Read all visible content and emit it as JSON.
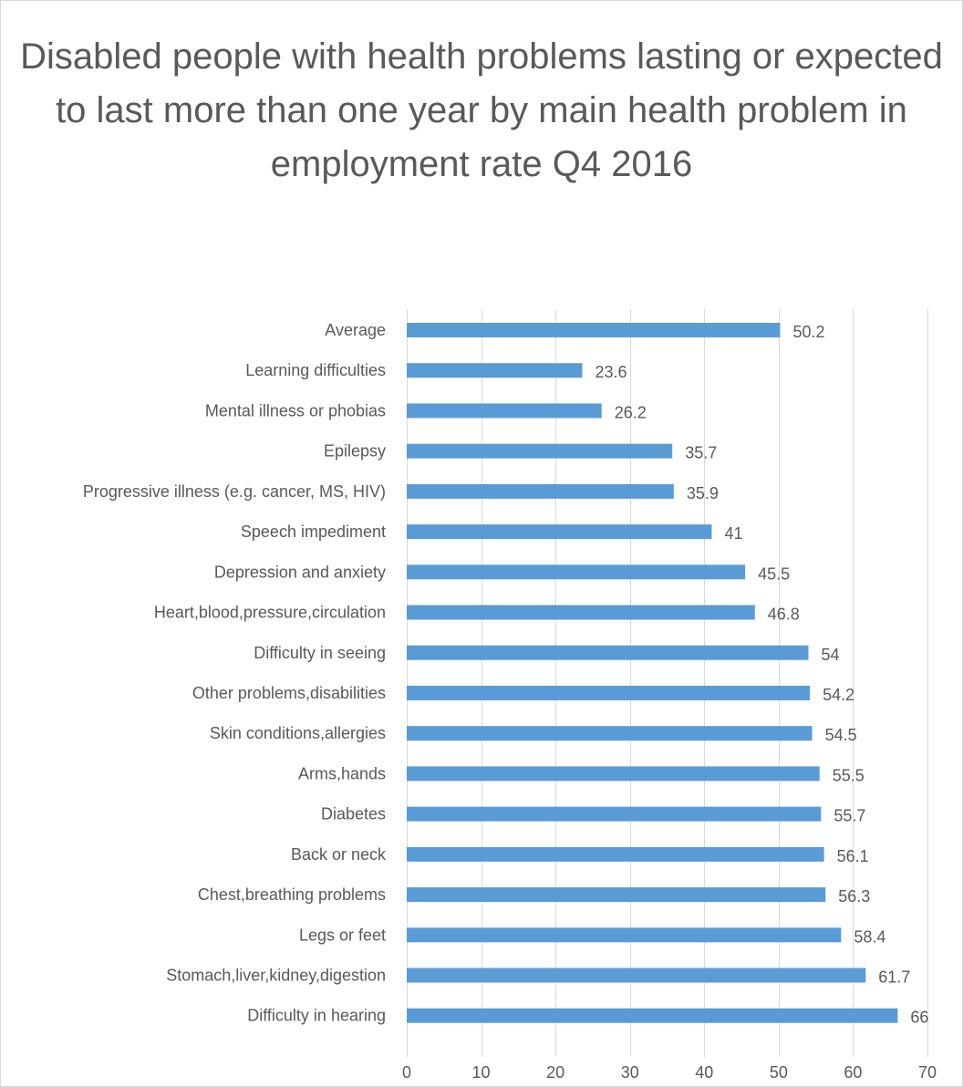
{
  "chart_data": {
    "type": "bar",
    "orientation": "horizontal",
    "title": "Disabled people with health problems lasting or expected to last more than one year by main health problem in employment rate Q4 2016",
    "xlabel": "",
    "ylabel": "",
    "xlim": [
      0,
      70
    ],
    "x_ticks": [
      0,
      10,
      20,
      30,
      40,
      50,
      60,
      70
    ],
    "gridlines": "vertical",
    "legend": "none",
    "bar_color": "#5b9bd5",
    "categories": [
      "Average",
      "Learning difficulties",
      "Mental illness or phobias",
      "Epilepsy",
      "Progressive illness (e.g. cancer, MS, HIV)",
      "Speech impediment",
      "Depression and anxiety",
      "Heart,blood,pressure,circulation",
      "Difficulty in seeing",
      "Other problems,disabilities",
      "Skin conditions,allergies",
      "Arms,hands",
      "Diabetes",
      "Back or neck",
      "Chest,breathing problems",
      "Legs or feet",
      "Stomach,liver,kidney,digestion",
      "Difficulty in hearing"
    ],
    "values": [
      50.2,
      23.6,
      26.2,
      35.7,
      35.9,
      41,
      45.5,
      46.8,
      54,
      54.2,
      54.5,
      55.5,
      55.7,
      56.1,
      56.3,
      58.4,
      61.7,
      66
    ],
    "value_labels": [
      "50.2",
      "23.6",
      "26.2",
      "35.7",
      "35.9",
      "41",
      "45.5",
      "46.8",
      "54",
      "54.2",
      "54.5",
      "55.5",
      "55.7",
      "56.1",
      "56.3",
      "58.4",
      "61.7",
      "66"
    ]
  }
}
